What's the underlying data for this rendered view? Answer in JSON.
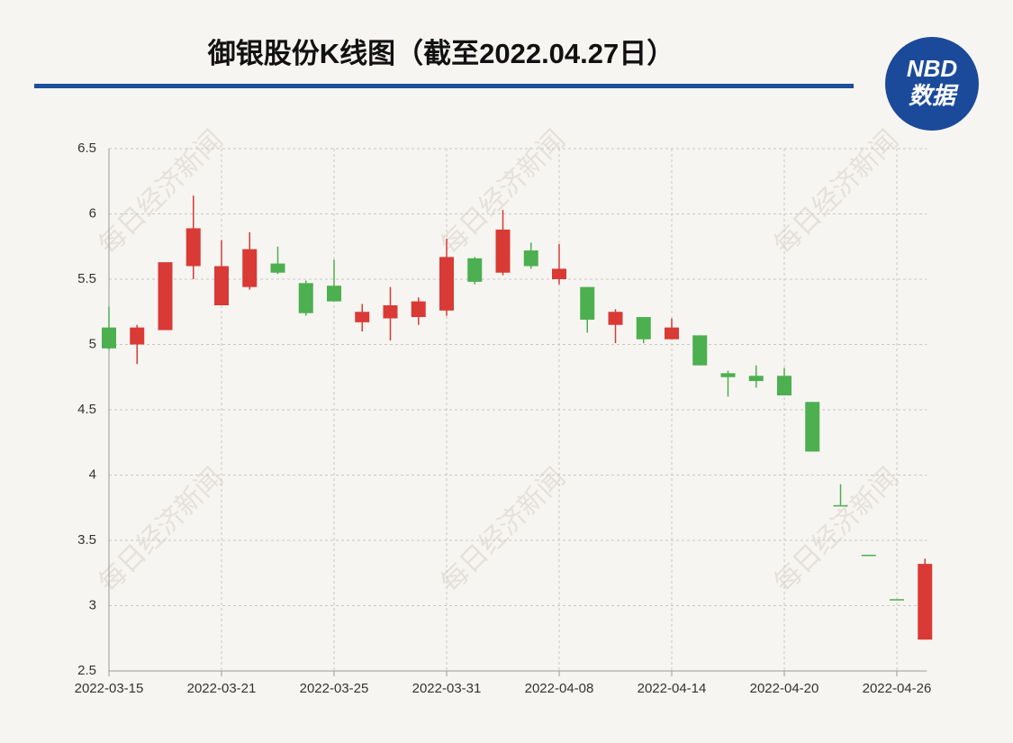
{
  "chart_data": {
    "type": "candlestick",
    "title": "御银股份K线图（截至2022.04.27日）",
    "watermark": "每日经济新闻",
    "categories": [
      "2022-03-15",
      null,
      null,
      null,
      "2022-03-21",
      null,
      null,
      null,
      "2022-03-25",
      null,
      null,
      null,
      "2022-03-31",
      null,
      null,
      null,
      "2022-04-08",
      null,
      null,
      null,
      "2022-04-14",
      null,
      null,
      null,
      "2022-04-20",
      null,
      null,
      null,
      "2022-04-26",
      null
    ],
    "open": [
      5.13,
      5.0,
      5.11,
      5.6,
      5.3,
      5.44,
      5.62,
      5.47,
      5.45,
      5.17,
      5.2,
      5.21,
      5.26,
      5.66,
      5.55,
      5.72,
      5.5,
      5.44,
      5.15,
      5.21,
      5.04,
      5.07,
      4.78,
      4.76,
      4.76,
      4.56,
      3.77,
      3.39,
      3.05,
      2.74
    ],
    "high": [
      5.29,
      5.15,
      5.63,
      6.14,
      5.8,
      5.86,
      5.75,
      5.49,
      5.65,
      5.31,
      5.44,
      5.36,
      5.81,
      5.67,
      6.03,
      5.78,
      5.77,
      5.44,
      5.27,
      5.21,
      5.2,
      5.07,
      4.8,
      4.84,
      4.82,
      4.56,
      3.93,
      3.39,
      3.05,
      3.36
    ],
    "low": [
      4.96,
      4.85,
      5.11,
      5.5,
      5.3,
      5.42,
      5.54,
      5.22,
      5.33,
      5.1,
      5.03,
      5.15,
      5.22,
      5.46,
      5.53,
      5.58,
      5.46,
      5.09,
      5.01,
      5.01,
      5.04,
      4.84,
      4.6,
      4.67,
      4.61,
      4.18,
      3.77,
      3.39,
      3.05,
      2.74
    ],
    "close": [
      4.97,
      5.13,
      5.63,
      5.89,
      5.6,
      5.73,
      5.55,
      5.24,
      5.33,
      5.25,
      5.3,
      5.33,
      5.67,
      5.48,
      5.88,
      5.6,
      5.58,
      5.19,
      5.25,
      5.04,
      5.13,
      4.84,
      4.75,
      4.72,
      4.61,
      4.18,
      3.77,
      3.39,
      3.05,
      3.32
    ],
    "up_color": "#d93a35",
    "down_color": "#4caf50",
    "ylim": [
      2.5,
      6.5
    ],
    "yticks": [
      2.5,
      3,
      3.5,
      4,
      4.5,
      5,
      5.5,
      6,
      6.5
    ],
    "grid": true
  },
  "logo": {
    "line1": "NBD",
    "line2": "数据"
  }
}
